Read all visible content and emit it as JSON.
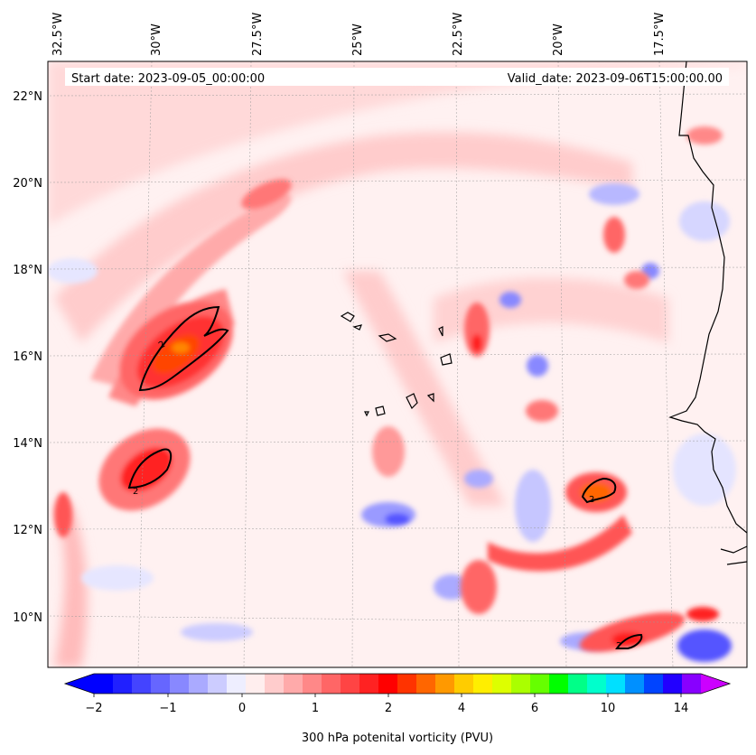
{
  "header": {
    "start_date": "Start date: 2023-09-05_00:00:00",
    "valid_date": "Valid_date: 2023-09-06T15:00:00.00"
  },
  "map": {
    "longitude_labels": [
      "32.5°W",
      "30°W",
      "27.5°W",
      "25°W",
      "22.5°W",
      "20°W",
      "17.5°W"
    ],
    "latitude_labels": [
      "22°N",
      "20°N",
      "18°N",
      "16°N",
      "14°N",
      "12°N",
      "10°N"
    ],
    "contour_labels": [
      "2",
      "2",
      "2",
      "2"
    ],
    "colors": {
      "coastline": "#000000",
      "contour": "#000000"
    }
  },
  "colorbar": {
    "label": "300 hPa potenital vorticity (PVU)",
    "ticks": [
      "−2",
      "−1",
      "0",
      "1",
      "2",
      "4",
      "6",
      "10",
      "14"
    ],
    "colors": [
      "#0000ff",
      "#2020ff",
      "#4444ff",
      "#6666ff",
      "#8888ff",
      "#aaaaff",
      "#ccccff",
      "#eeeeff",
      "#ffeeee",
      "#ffcccc",
      "#ffaaaa",
      "#ff8888",
      "#ff6666",
      "#ff4444",
      "#ff2222",
      "#ff0000",
      "#ff3300",
      "#ff6600",
      "#ff9900",
      "#ffcc00",
      "#ffee00",
      "#ddff00",
      "#aaff00",
      "#66ff00",
      "#00ff00",
      "#00ff88",
      "#00ffcc",
      "#00e0ff",
      "#0090ff",
      "#0044ff",
      "#2200ff",
      "#8800ff"
    ],
    "under_color": "#0000ff",
    "over_color": "#cc00ff"
  }
}
